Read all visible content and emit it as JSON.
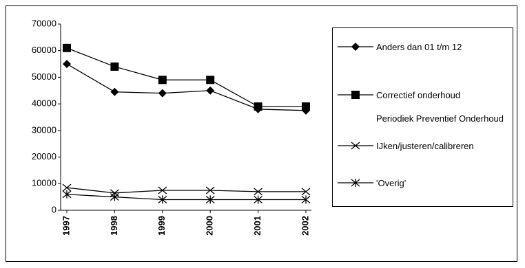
{
  "chart_data": {
    "type": "line",
    "categories": [
      "1997",
      "1998",
      "1999",
      "2000",
      "2001",
      "2002"
    ],
    "series": [
      {
        "name": "Anders dan 01 t/m 12",
        "color": "#000000",
        "marker": "diamond",
        "values": [
          55000,
          44500,
          44000,
          45000,
          38000,
          37500
        ]
      },
      {
        "name": "Correctief onderhoud",
        "color": "#000000",
        "marker": "square",
        "values": [
          61000,
          54000,
          49000,
          49000,
          39000,
          39000
        ]
      },
      {
        "name": "Periodiek Preventief Onderhoud",
        "color": "#ffffff",
        "marker": "none",
        "values": [
          null,
          null,
          null,
          null,
          null,
          null
        ]
      },
      {
        "name": "IJken/justeren/calibreren",
        "color": "#000000",
        "marker": "x",
        "values": [
          8500,
          6500,
          7500,
          7500,
          7000,
          7000
        ]
      },
      {
        "name": "'Overig'",
        "color": "#000000",
        "marker": "star",
        "values": [
          6000,
          5000,
          4000,
          4000,
          4000,
          4000
        ]
      }
    ],
    "ylim": [
      0,
      70000
    ],
    "yticks": [
      0,
      10000,
      20000,
      30000,
      40000,
      50000,
      60000,
      70000
    ],
    "legend": "right"
  }
}
